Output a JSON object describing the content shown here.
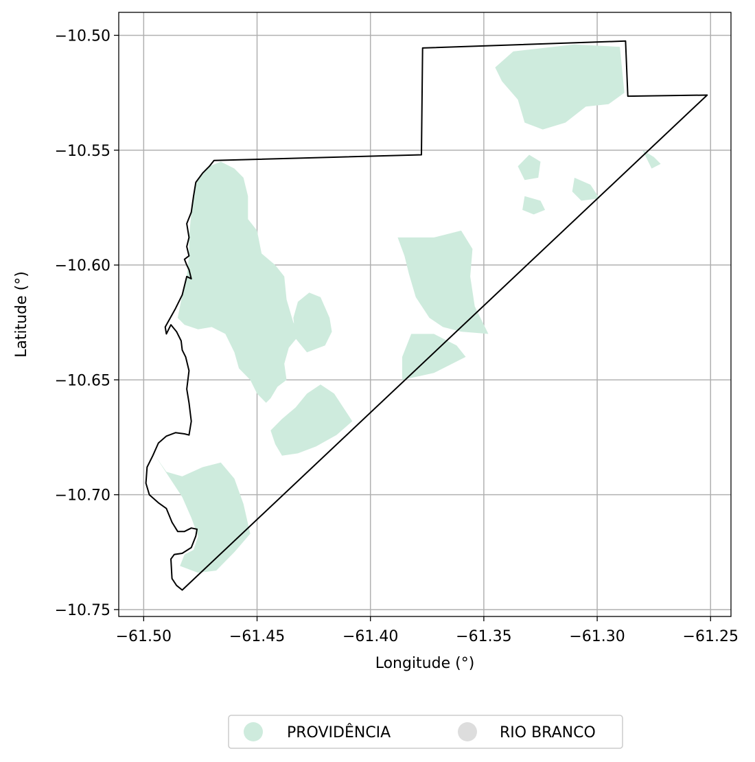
{
  "figure": {
    "xlabel": "Longitude (°)",
    "ylabel": "Latitude (°)",
    "xlim": [
      -61.511,
      -61.241
    ],
    "ylim": [
      -10.753,
      -10.49
    ],
    "grid": true,
    "legend_placement": "bottom-center",
    "x_ticks": [
      {
        "value": -61.5,
        "label": "−61.50"
      },
      {
        "value": -61.45,
        "label": "−61.45"
      },
      {
        "value": -61.4,
        "label": "−61.40"
      },
      {
        "value": -61.35,
        "label": "−61.35"
      },
      {
        "value": -61.3,
        "label": "−61.30"
      },
      {
        "value": -61.25,
        "label": "−61.25"
      }
    ],
    "y_ticks": [
      {
        "value": -10.5,
        "label": "−10.50"
      },
      {
        "value": -10.55,
        "label": "−10.55"
      },
      {
        "value": -10.6,
        "label": "−10.60"
      },
      {
        "value": -10.65,
        "label": "−10.65"
      },
      {
        "value": -10.7,
        "label": "−10.70"
      },
      {
        "value": -10.75,
        "label": "−10.75"
      }
    ]
  },
  "legend": {
    "items": [
      {
        "label": "PROVIDÊNCIA",
        "color": "#ceebdd"
      },
      {
        "label": "RIO BRANCO",
        "color": "#dddddd"
      }
    ]
  },
  "colors": {
    "providencia": "#ceebdd",
    "rio_branco": "#dddddd",
    "boundary": "#000000",
    "grid": "#b0b0b0"
  },
  "boundary": [
    [
      -61.469,
      -10.5545
    ],
    [
      -61.3775,
      -10.552
    ],
    [
      -61.377,
      -10.5055
    ],
    [
      -61.2875,
      -10.5025
    ],
    [
      -61.2865,
      -10.5265
    ],
    [
      -61.2515,
      -10.526
    ],
    [
      -61.483,
      -10.7415
    ],
    [
      -61.4855,
      -10.7395
    ],
    [
      -61.4875,
      -10.7365
    ],
    [
      -61.488,
      -10.728
    ],
    [
      -61.4865,
      -10.726
    ],
    [
      -61.483,
      -10.7255
    ],
    [
      -61.479,
      -10.723
    ],
    [
      -61.477,
      -10.718
    ],
    [
      -61.4765,
      -10.715
    ],
    [
      -61.479,
      -10.7145
    ],
    [
      -61.482,
      -10.716
    ],
    [
      -61.485,
      -10.716
    ],
    [
      -61.4875,
      -10.712
    ],
    [
      -61.49,
      -10.706
    ],
    [
      -61.4935,
      -10.7035
    ],
    [
      -61.4975,
      -10.7
    ],
    [
      -61.499,
      -10.695
    ],
    [
      -61.4985,
      -10.688
    ],
    [
      -61.496,
      -10.683
    ],
    [
      -61.4935,
      -10.6775
    ],
    [
      -61.49,
      -10.6745
    ],
    [
      -61.486,
      -10.673
    ],
    [
      -61.482,
      -10.6735
    ],
    [
      -61.48,
      -10.674
    ],
    [
      -61.479,
      -10.668
    ],
    [
      -61.48,
      -10.66
    ],
    [
      -61.481,
      -10.654
    ],
    [
      -61.48,
      -10.646
    ],
    [
      -61.4815,
      -10.64
    ],
    [
      -61.483,
      -10.637
    ],
    [
      -61.4835,
      -10.633
    ],
    [
      -61.4855,
      -10.629
    ],
    [
      -61.488,
      -10.626
    ],
    [
      -61.49,
      -10.63
    ],
    [
      -61.4905,
      -10.627
    ],
    [
      -61.486,
      -10.619
    ],
    [
      -61.483,
      -10.613
    ],
    [
      -61.481,
      -10.605
    ],
    [
      -61.479,
      -10.606
    ],
    [
      -61.48,
      -10.602
    ],
    [
      -61.481,
      -10.6
    ],
    [
      -61.482,
      -10.5975
    ],
    [
      -61.48,
      -10.596
    ],
    [
      -61.481,
      -10.592
    ],
    [
      -61.48,
      -10.588
    ],
    [
      -61.481,
      -10.582
    ],
    [
      -61.479,
      -10.577
    ],
    [
      -61.478,
      -10.57
    ],
    [
      -61.477,
      -10.564
    ],
    [
      -61.474,
      -10.56
    ],
    [
      -61.471,
      -10.557
    ]
  ],
  "providencia_regions": [
    [
      [
        -61.471,
        -10.557
      ],
      [
        -61.466,
        -10.555
      ],
      [
        -61.46,
        -10.558
      ],
      [
        -61.456,
        -10.562
      ],
      [
        -61.454,
        -10.57
      ],
      [
        -61.454,
        -10.58
      ],
      [
        -61.45,
        -10.585
      ],
      [
        -61.448,
        -10.595
      ],
      [
        -61.442,
        -10.6
      ],
      [
        -61.438,
        -10.605
      ],
      [
        -61.437,
        -10.615
      ],
      [
        -61.434,
        -10.625
      ],
      [
        -61.431,
        -10.63
      ],
      [
        -61.436,
        -10.636
      ],
      [
        -61.438,
        -10.643
      ],
      [
        -61.437,
        -10.65
      ],
      [
        -61.441,
        -10.653
      ],
      [
        -61.444,
        -10.658
      ],
      [
        -61.446,
        -10.66
      ],
      [
        -61.45,
        -10.656
      ],
      [
        -61.453,
        -10.65
      ],
      [
        -61.458,
        -10.645
      ],
      [
        -61.46,
        -10.638
      ],
      [
        -61.464,
        -10.63
      ],
      [
        -61.47,
        -10.627
      ],
      [
        -61.476,
        -10.628
      ],
      [
        -61.482,
        -10.626
      ],
      [
        -61.485,
        -10.623
      ],
      [
        -61.483,
        -10.613
      ],
      [
        -61.481,
        -10.605
      ],
      [
        -61.48,
        -10.596
      ],
      [
        -61.48,
        -10.588
      ],
      [
        -61.479,
        -10.577
      ],
      [
        -61.477,
        -10.564
      ]
    ],
    [
      [
        -61.422,
        -10.652
      ],
      [
        -61.416,
        -10.656
      ],
      [
        -61.412,
        -10.662
      ],
      [
        -61.408,
        -10.668
      ],
      [
        -61.415,
        -10.674
      ],
      [
        -61.424,
        -10.679
      ],
      [
        -61.432,
        -10.682
      ],
      [
        -61.439,
        -10.683
      ],
      [
        -61.442,
        -10.678
      ],
      [
        -61.444,
        -10.672
      ],
      [
        -61.439,
        -10.667
      ],
      [
        -61.433,
        -10.662
      ],
      [
        -61.428,
        -10.656
      ]
    ],
    [
      [
        -61.427,
        -10.612
      ],
      [
        -61.422,
        -10.614
      ],
      [
        -61.418,
        -10.623
      ],
      [
        -61.417,
        -10.629
      ],
      [
        -61.42,
        -10.635
      ],
      [
        -61.428,
        -10.638
      ],
      [
        -61.433,
        -10.632
      ],
      [
        -61.434,
        -10.623
      ],
      [
        -61.432,
        -10.616
      ]
    ],
    [
      [
        -61.388,
        -10.588
      ],
      [
        -61.372,
        -10.588
      ],
      [
        -61.36,
        -10.585
      ],
      [
        -61.355,
        -10.593
      ],
      [
        -61.356,
        -10.605
      ],
      [
        -61.354,
        -10.618
      ],
      [
        -61.348,
        -10.63
      ],
      [
        -61.36,
        -10.629
      ],
      [
        -61.368,
        -10.627
      ],
      [
        -61.374,
        -10.623
      ],
      [
        -61.38,
        -10.614
      ],
      [
        -61.383,
        -10.604
      ],
      [
        -61.385,
        -10.596
      ]
    ],
    [
      [
        -61.382,
        -10.63
      ],
      [
        -61.372,
        -10.63
      ],
      [
        -61.362,
        -10.635
      ],
      [
        -61.358,
        -10.64
      ],
      [
        -61.372,
        -10.647
      ],
      [
        -61.386,
        -10.65
      ],
      [
        -61.386,
        -10.64
      ]
    ],
    [
      [
        -61.495,
        -10.683
      ],
      [
        -61.489,
        -10.692
      ],
      [
        -61.483,
        -10.701
      ],
      [
        -61.479,
        -10.71
      ],
      [
        -61.476,
        -10.718
      ],
      [
        -61.478,
        -10.724
      ],
      [
        -61.482,
        -10.726
      ],
      [
        -61.484,
        -10.731
      ],
      [
        -61.476,
        -10.734
      ],
      [
        -61.468,
        -10.733
      ],
      [
        -61.46,
        -10.725
      ],
      [
        -61.453,
        -10.717
      ],
      [
        -61.456,
        -10.704
      ],
      [
        -61.46,
        -10.693
      ],
      [
        -61.466,
        -10.686
      ],
      [
        -61.474,
        -10.688
      ],
      [
        -61.483,
        -10.692
      ],
      [
        -61.49,
        -10.69
      ]
    ],
    [
      [
        -61.337,
        -10.507
      ],
      [
        -61.31,
        -10.504
      ],
      [
        -61.29,
        -10.505
      ],
      [
        -61.288,
        -10.525
      ],
      [
        -61.295,
        -10.53
      ],
      [
        -61.305,
        -10.531
      ],
      [
        -61.314,
        -10.538
      ],
      [
        -61.324,
        -10.541
      ],
      [
        -61.332,
        -10.538
      ],
      [
        -61.335,
        -10.528
      ],
      [
        -61.342,
        -10.52
      ],
      [
        -61.345,
        -10.514
      ]
    ],
    [
      [
        -61.33,
        -10.552
      ],
      [
        -61.325,
        -10.555
      ],
      [
        -61.326,
        -10.562
      ],
      [
        -61.332,
        -10.563
      ],
      [
        -61.335,
        -10.557
      ]
    ],
    [
      [
        -61.31,
        -10.562
      ],
      [
        -61.303,
        -10.565
      ],
      [
        -61.299,
        -10.571
      ],
      [
        -61.307,
        -10.572
      ],
      [
        -61.311,
        -10.568
      ]
    ],
    [
      [
        -61.28,
        -10.55
      ],
      [
        -61.275,
        -10.553
      ],
      [
        -61.272,
        -10.556
      ],
      [
        -61.276,
        -10.558
      ]
    ],
    [
      [
        -61.332,
        -10.57
      ],
      [
        -61.325,
        -10.572
      ],
      [
        -61.323,
        -10.576
      ],
      [
        -61.328,
        -10.578
      ],
      [
        -61.333,
        -10.576
      ]
    ]
  ]
}
